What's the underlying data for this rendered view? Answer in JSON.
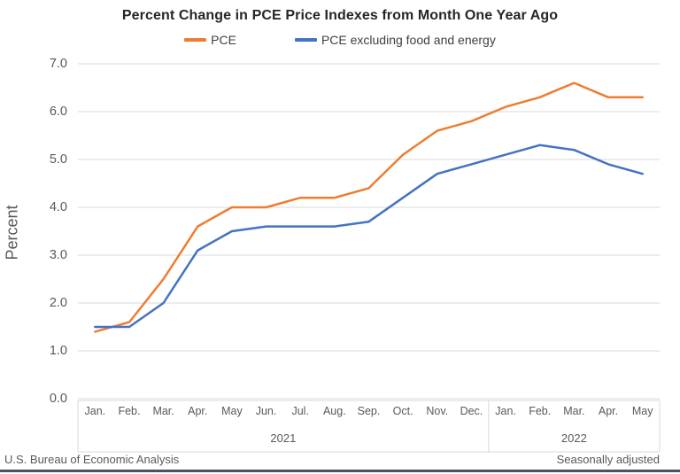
{
  "header": {
    "title": "Percent Change in PCE Price Indexes from Month One Year Ago"
  },
  "footer": {
    "source": "U.S. Bureau of Economic Analysis",
    "note": "Seasonally adjusted"
  },
  "colors": {
    "pce_line": "#ED7D31",
    "core_line": "#4472C4",
    "gridline": "#D9D9D9",
    "category_box_border": "#D9D9D9",
    "axis_text": "#595959",
    "title_text": "#262626",
    "bottom_rule": "#44546A"
  },
  "chart_data": {
    "type": "line",
    "title": "Percent Change in PCE Price Indexes from Month One Year Ago",
    "xlabel": "",
    "ylabel": "Percent",
    "ylim": [
      0.0,
      7.0
    ],
    "y_ticks": [
      0.0,
      1.0,
      2.0,
      3.0,
      4.0,
      5.0,
      6.0,
      7.0
    ],
    "y_tick_format_decimals": 1,
    "grid": "horizontal",
    "legend_position": "top",
    "categories": [
      "Jan.",
      "Feb.",
      "Mar.",
      "Apr.",
      "May",
      "Jun.",
      "Jul.",
      "Aug.",
      "Sep.",
      "Oct.",
      "Nov.",
      "Dec.",
      "Jan.",
      "Feb.",
      "Mar.",
      "Apr.",
      "May"
    ],
    "year_groups": [
      {
        "label": "2021",
        "span": 12
      },
      {
        "label": "2022",
        "span": 5
      }
    ],
    "series": [
      {
        "name": "PCE",
        "color": "#ED7D31",
        "values": [
          1.4,
          1.6,
          2.5,
          3.6,
          4.0,
          4.0,
          4.2,
          4.2,
          4.4,
          5.1,
          5.6,
          5.8,
          6.1,
          6.3,
          6.6,
          6.3,
          6.3
        ]
      },
      {
        "name": "PCE excluding food and energy",
        "color": "#4472C4",
        "values": [
          1.5,
          1.5,
          2.0,
          3.1,
          3.5,
          3.6,
          3.6,
          3.6,
          3.7,
          4.2,
          4.7,
          4.9,
          5.1,
          5.3,
          5.2,
          4.9,
          4.7
        ]
      }
    ]
  }
}
